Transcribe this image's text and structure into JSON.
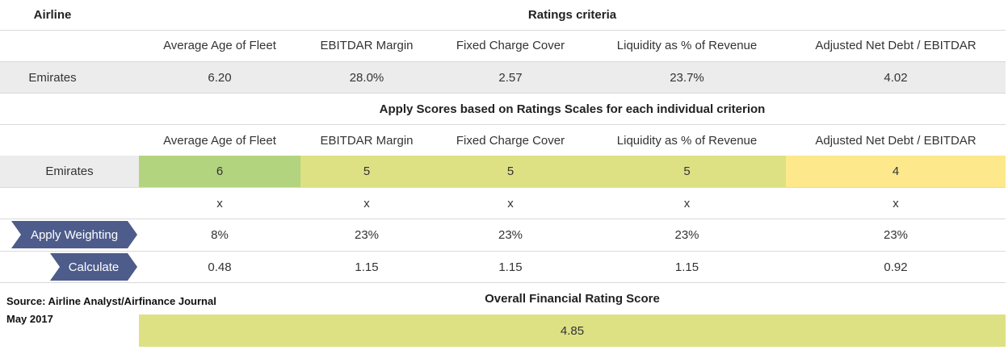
{
  "header": {
    "airline_label": "Airline",
    "ratings_criteria_title": "Ratings criteria"
  },
  "criteria": [
    "Average Age of Fleet",
    "EBITDAR Margin",
    "Fixed Charge Cover",
    "Liquidity as % of Revenue",
    "Adjusted Net Debt / EBITDAR"
  ],
  "raw_row": {
    "airline": "Emirates",
    "values": [
      "6.20",
      "28.0%",
      "2.57",
      "23.7%",
      "4.02"
    ]
  },
  "scores_title": "Apply Scores based on Ratings Scales for each individual criterion",
  "scores_row": {
    "airline": "Emirates",
    "values": [
      "6",
      "5",
      "5",
      "5",
      "4"
    ],
    "colors": [
      "#b2d47f",
      "#dde184",
      "#dde184",
      "#dde184",
      "#fde98b"
    ]
  },
  "multiply_row": [
    "x",
    "x",
    "x",
    "x",
    "x"
  ],
  "weighting": {
    "label": "Apply Weighting",
    "values": [
      "8%",
      "23%",
      "23%",
      "23%",
      "23%"
    ]
  },
  "calculate": {
    "label": "Calculate",
    "values": [
      "0.48",
      "1.15",
      "1.15",
      "1.15",
      "0.92"
    ]
  },
  "overall": {
    "title": "Overall Financial Rating Score",
    "value": "4.85",
    "color": "#dde184"
  },
  "source": {
    "line1": "Source: Airline Analyst/Airfinance Journal",
    "line2": "May 2017"
  }
}
